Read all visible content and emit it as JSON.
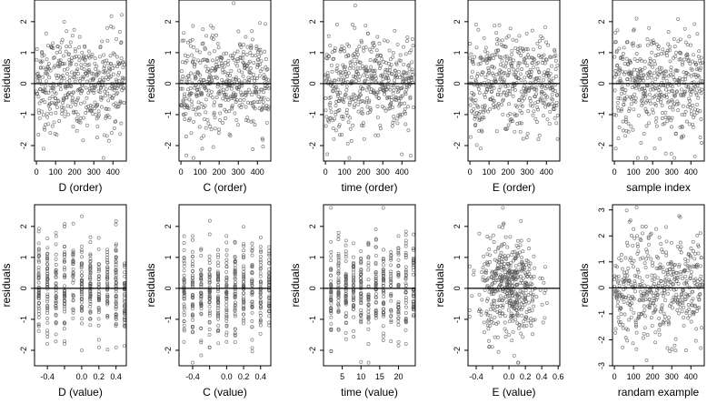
{
  "colors": {
    "points": "#555555",
    "axis": "#000000",
    "zero_line": "#000000",
    "background": "#ffffff"
  },
  "chart_data": [
    {
      "type": "scatter",
      "xlabel": "D (order)",
      "ylabel": "residuals",
      "xlim": [
        -10,
        470
      ],
      "ylim": [
        -2.5,
        2.7
      ],
      "xticks": [
        0,
        100,
        200,
        300,
        400
      ],
      "xtick_labels": [
        "0",
        "100",
        "200",
        "300",
        "400"
      ],
      "yticks": [
        -2,
        -1,
        0,
        1,
        2
      ],
      "ytick_labels": [
        "-2",
        "-1",
        "0",
        "1",
        "2"
      ],
      "reference_line": 0,
      "grid": false,
      "x_dist": "index",
      "n": 460,
      "y_sd": 0.8
    },
    {
      "type": "scatter",
      "xlabel": "C (order)",
      "ylabel": "residuals",
      "xlim": [
        -10,
        470
      ],
      "ylim": [
        -2.5,
        2.7
      ],
      "xticks": [
        0,
        100,
        200,
        300,
        400
      ],
      "xtick_labels": [
        "0",
        "100",
        "200",
        "300",
        "400"
      ],
      "yticks": [
        -2,
        -1,
        0,
        1,
        2
      ],
      "ytick_labels": [
        "-2",
        "-1",
        "0",
        "1",
        "2"
      ],
      "reference_line": 0,
      "grid": false,
      "x_dist": "index",
      "n": 460,
      "y_sd": 0.8
    },
    {
      "type": "scatter",
      "xlabel": "time (order)",
      "ylabel": "residuals",
      "xlim": [
        -10,
        470
      ],
      "ylim": [
        -2.5,
        2.7
      ],
      "xticks": [
        0,
        100,
        200,
        300,
        400
      ],
      "xtick_labels": [
        "0",
        "100",
        "200",
        "300",
        "400"
      ],
      "yticks": [
        -2,
        -1,
        0,
        1,
        2
      ],
      "ytick_labels": [
        "-2",
        "-1",
        "0",
        "1",
        "2"
      ],
      "reference_line": 0,
      "grid": false,
      "x_dist": "index",
      "n": 460,
      "y_sd": 0.8
    },
    {
      "type": "scatter",
      "xlabel": "E (order)",
      "ylabel": "residuals",
      "xlim": [
        -10,
        470
      ],
      "ylim": [
        -2.5,
        2.7
      ],
      "xticks": [
        0,
        100,
        200,
        300,
        400
      ],
      "xtick_labels": [
        "0",
        "100",
        "200",
        "300",
        "400"
      ],
      "yticks": [
        -2,
        -1,
        0,
        1,
        2
      ],
      "ytick_labels": [
        "-2",
        "-1",
        "0",
        "1",
        "2"
      ],
      "reference_line": 0,
      "grid": false,
      "x_dist": "index",
      "n": 460,
      "y_sd": 0.8
    },
    {
      "type": "scatter",
      "xlabel": "sample index",
      "ylabel": "residuals",
      "xlim": [
        -10,
        470
      ],
      "ylim": [
        -2.5,
        2.7
      ],
      "xticks": [
        0,
        100,
        200,
        300,
        400
      ],
      "xtick_labels": [
        "0",
        "100",
        "200",
        "300",
        "400"
      ],
      "yticks": [
        -2,
        -1,
        0,
        1,
        2
      ],
      "ytick_labels": [
        "-2",
        "-1",
        "0",
        "1",
        "2"
      ],
      "reference_line": 0,
      "grid": false,
      "x_dist": "index",
      "n": 460,
      "y_sd": 0.8
    },
    {
      "type": "scatter",
      "xlabel": "D (value)",
      "ylabel": "residuals",
      "xlim": [
        -0.55,
        0.52
      ],
      "ylim": [
        -2.5,
        2.7
      ],
      "xticks": [
        -0.4,
        -0.2,
        0.0,
        0.2,
        0.4
      ],
      "xtick_labels": [
        "-0.4",
        "",
        "0.0",
        "0.2",
        "0.4"
      ],
      "yticks": [
        -2,
        -1,
        0,
        1,
        2
      ],
      "ytick_labels": [
        "-2",
        "-1",
        "0",
        "1",
        "2"
      ],
      "reference_line": 0,
      "grid": false,
      "x_dist": "stripes",
      "x_levels": [
        -0.5,
        -0.4,
        -0.3,
        -0.2,
        -0.1,
        0.0,
        0.1,
        0.2,
        0.3,
        0.4,
        0.5
      ],
      "n": 460,
      "y_sd": 0.8
    },
    {
      "type": "scatter",
      "xlabel": "C (value)",
      "ylabel": "residuals",
      "xlim": [
        -0.56,
        0.52
      ],
      "ylim": [
        -2.5,
        2.7
      ],
      "xticks": [
        -0.4,
        -0.2,
        0.0,
        0.2,
        0.4
      ],
      "xtick_labels": [
        "-0.4",
        "",
        "0.0",
        "0.2",
        "0.4"
      ],
      "yticks": [
        -2,
        -1,
        0,
        1,
        2
      ],
      "ytick_labels": [
        "-2",
        "-1",
        "0",
        "1",
        "2"
      ],
      "reference_line": 0,
      "grid": false,
      "x_dist": "stripes",
      "x_levels": [
        -0.5,
        -0.4,
        -0.3,
        -0.2,
        -0.1,
        0.0,
        0.1,
        0.2,
        0.3,
        0.4,
        0.5
      ],
      "n": 460,
      "y_sd": 0.8
    },
    {
      "type": "scatter",
      "xlabel": "time (value)",
      "ylabel": "residuals",
      "xlim": [
        0,
        24.5
      ],
      "ylim": [
        -2.5,
        2.7
      ],
      "xticks": [
        5,
        10,
        15,
        20
      ],
      "xtick_labels": [
        "5",
        "10",
        "15",
        "20"
      ],
      "yticks": [
        -2,
        -1,
        0,
        1,
        2
      ],
      "ytick_labels": [
        "-2",
        "-1",
        "0",
        "1",
        "2"
      ],
      "reference_line": 0,
      "grid": false,
      "x_dist": "stripes",
      "x_levels": [
        2,
        4,
        6,
        8,
        10,
        12,
        14,
        16,
        18,
        20,
        22,
        24
      ],
      "n": 460,
      "y_sd": 0.8
    },
    {
      "type": "scatter",
      "xlabel": "E (value)",
      "ylabel": "residuals",
      "xlim": [
        -0.5,
        0.62
      ],
      "ylim": [
        -2.5,
        2.7
      ],
      "xticks": [
        -0.4,
        -0.2,
        0.0,
        0.2,
        0.4,
        0.6
      ],
      "xtick_labels": [
        "-0.4",
        "",
        "0.0",
        "0.2",
        "0.4",
        "0.6"
      ],
      "yticks": [
        -2,
        -1,
        0,
        1,
        2
      ],
      "ytick_labels": [
        "-2",
        "-1",
        "0",
        "1",
        "2"
      ],
      "reference_line": 0,
      "grid": false,
      "x_dist": "normal",
      "x_center": 0.0,
      "x_sd": 0.18,
      "n": 460,
      "y_sd": 0.8
    },
    {
      "type": "scatter",
      "xlabel": "randam example",
      "ylabel": "residuals",
      "xlim": [
        -10,
        470
      ],
      "ylim": [
        -3.0,
        3.2
      ],
      "xticks": [
        0,
        100,
        200,
        300,
        400
      ],
      "xtick_labels": [
        "0",
        "100",
        "200",
        "300",
        "400"
      ],
      "yticks": [
        -3,
        -2,
        -1,
        0,
        1,
        2,
        3
      ],
      "ytick_labels": [
        "-3",
        "-2",
        "-1",
        "0",
        "1",
        "2",
        "3"
      ],
      "reference_line": 0,
      "grid": false,
      "x_dist": "index",
      "n": 460,
      "y_sd": 1.0
    }
  ]
}
